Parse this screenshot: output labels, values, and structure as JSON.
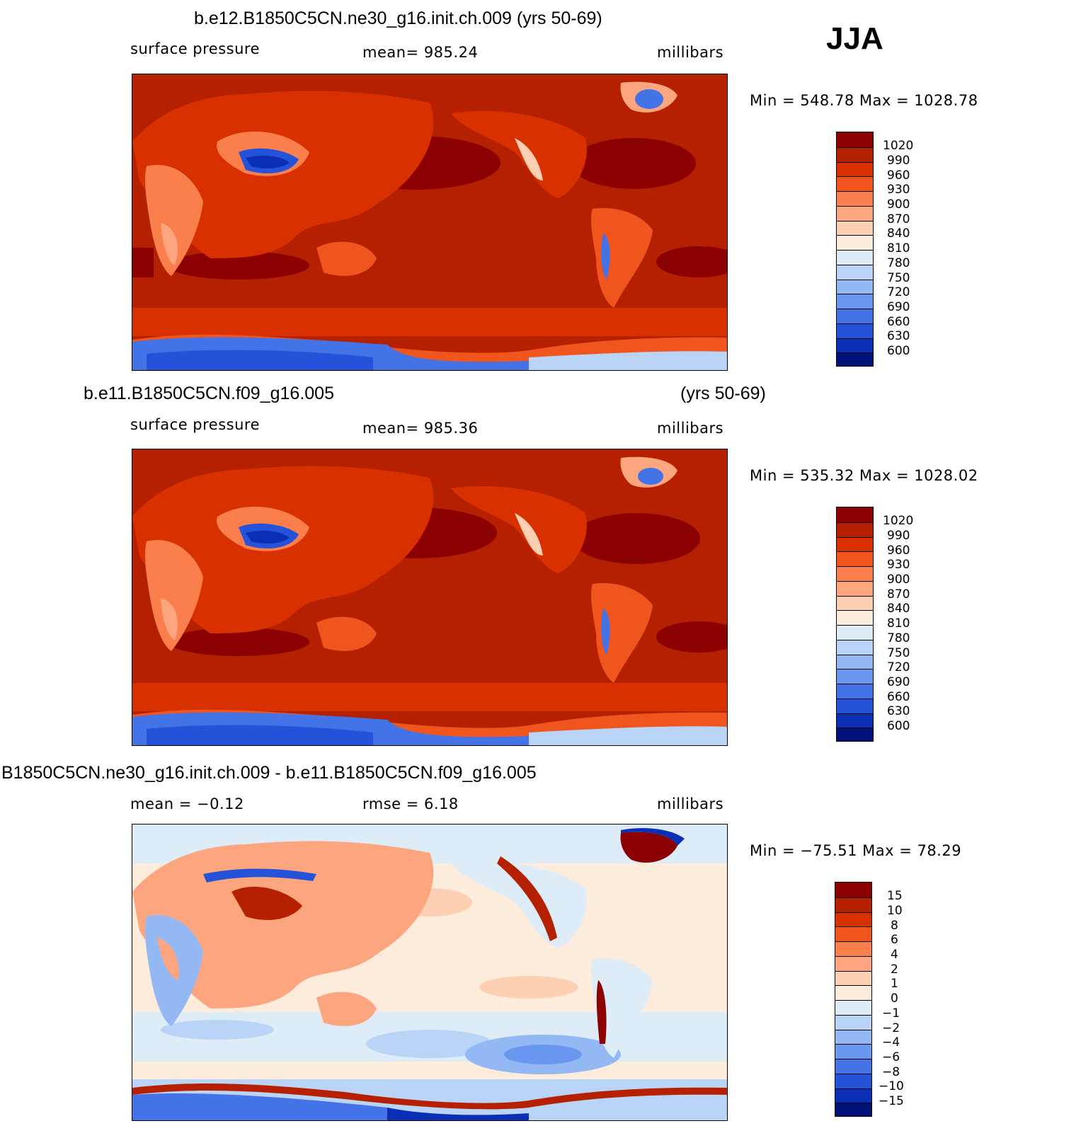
{
  "season": "JJA",
  "panels": [
    {
      "title": "b.e12.B1850C5CN.ne30_g16.init.ch.009 (yrs 50-69)",
      "left_label": "surface  pressure",
      "center_label": "mean=  985.24",
      "units": "millibars",
      "minmax": "Min  =  548.78  Max  =  1028.78"
    },
    {
      "title": "b.e11.B1850C5CN.f09_g16.005",
      "title_right": "(yrs 50-69)",
      "left_label": "surface  pressure",
      "center_label": "mean=  985.36",
      "units": "millibars",
      "minmax": "Min  =  535.32  Max  =  1028.02"
    },
    {
      "title": "B1850C5CN.ne30_g16.init.ch.009 - b.e11.B1850C5CN.f09_g16.005",
      "left_label": "mean  =    −0.12",
      "center_label": "rmse  =     6.18",
      "units": "millibars",
      "minmax": "Min  =  −75.51  Max  =    78.29"
    }
  ],
  "chart_data": [
    {
      "type": "heatmap",
      "title": "b.e12.B1850C5CN.ne30_g16.init.ch.009 (yrs 50-69)",
      "variable": "surface pressure",
      "units": "millibars",
      "mean": 985.24,
      "min": 548.78,
      "max": 1028.78,
      "colorbar_levels": [
        "1020",
        "990",
        "960",
        "930",
        "900",
        "870",
        "840",
        "810",
        "780",
        "750",
        "720",
        "690",
        "660",
        "630",
        "600"
      ],
      "colors": [
        "#8b0000",
        "#b52000",
        "#d93000",
        "#f0551e",
        "#fb7f4d",
        "#fca57f",
        "#fdd0b3",
        "#fdebdc",
        "#deecf8",
        "#b9d4f6",
        "#93b8f3",
        "#6a97ef",
        "#4473e8",
        "#2452d8",
        "#0a2fb5",
        "#00127a"
      ]
    },
    {
      "type": "heatmap",
      "title": "b.e11.B1850C5CN.f09_g16.005 (yrs 50-69)",
      "variable": "surface pressure",
      "units": "millibars",
      "mean": 985.36,
      "min": 535.32,
      "max": 1028.02,
      "colorbar_levels": [
        "1020",
        "990",
        "960",
        "930",
        "900",
        "870",
        "840",
        "810",
        "780",
        "750",
        "720",
        "690",
        "660",
        "630",
        "600"
      ],
      "colors": [
        "#8b0000",
        "#b52000",
        "#d93000",
        "#f0551e",
        "#fb7f4d",
        "#fca57f",
        "#fdd0b3",
        "#fdebdc",
        "#deecf8",
        "#b9d4f6",
        "#93b8f3",
        "#6a97ef",
        "#4473e8",
        "#2452d8",
        "#0a2fb5",
        "#00127a"
      ]
    },
    {
      "type": "heatmap",
      "title": "B1850C5CN.ne30_g16.init.ch.009 - b.e11.B1850C5CN.f09_g16.005",
      "units": "millibars",
      "mean": -0.12,
      "rmse": 6.18,
      "min": -75.51,
      "max": 78.29,
      "colorbar_levels": [
        "15",
        "10",
        "8",
        "6",
        "4",
        "2",
        "1",
        "0",
        "−1",
        "−2",
        "−4",
        "−6",
        "−8",
        "−10",
        "−15"
      ],
      "colors": [
        "#8b0000",
        "#b52000",
        "#d93000",
        "#f0551e",
        "#fb7f4d",
        "#fca57f",
        "#fdd0b3",
        "#fdebdc",
        "#deecf8",
        "#b9d4f6",
        "#93b8f3",
        "#6a97ef",
        "#4473e8",
        "#2452d8",
        "#0a2fb5",
        "#00127a"
      ]
    }
  ]
}
